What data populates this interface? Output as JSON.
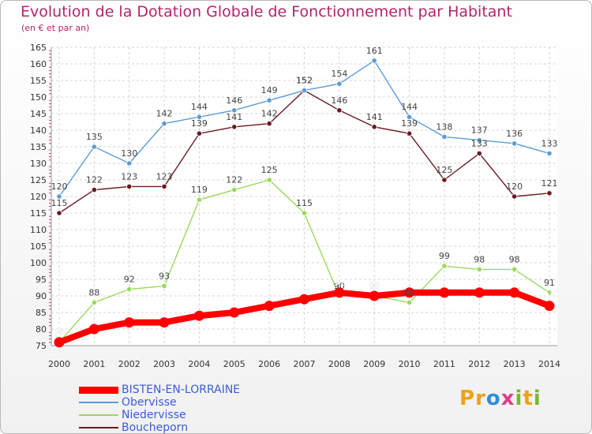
{
  "title": "Evolution de la Dotation Globale de Fonctionnement par Habitant",
  "subtitle": "(en € et par an)",
  "logo_text": "Proxiti",
  "chart_data": {
    "type": "line",
    "x": [
      2000,
      2001,
      2002,
      2003,
      2004,
      2005,
      2006,
      2007,
      2008,
      2009,
      2010,
      2011,
      2012,
      2013,
      2014
    ],
    "ylim": [
      75,
      165
    ],
    "yticks": [
      75,
      80,
      85,
      90,
      95,
      100,
      105,
      110,
      115,
      120,
      125,
      130,
      135,
      140,
      145,
      150,
      155,
      160,
      165
    ],
    "grid": true,
    "legend_position": "bottom-left",
    "series": [
      {
        "name": "BISTEN-EN-LORRAINE",
        "color": "#ff0000",
        "label_color": "#ffffff",
        "values": [
          76,
          80,
          82,
          82,
          84,
          85,
          87,
          89,
          91,
          90,
          91,
          91,
          91,
          91,
          87
        ]
      },
      {
        "name": "Obervisse",
        "color": "#5b9bd5",
        "values": [
          120,
          135,
          130,
          142,
          144,
          146,
          149,
          152,
          154,
          161,
          144,
          138,
          137,
          136,
          133
        ]
      },
      {
        "name": "Niedervisse",
        "color": "#9ad85a",
        "values": [
          76,
          88,
          92,
          93,
          119,
          122,
          125,
          115,
          90,
          90,
          88,
          99,
          98,
          98,
          91
        ]
      },
      {
        "name": "Boucheporn",
        "color": "#6b1a22",
        "values": [
          115,
          122,
          123,
          123,
          139,
          141,
          142,
          152,
          146,
          141,
          139,
          125,
          133,
          120,
          121
        ]
      }
    ]
  }
}
